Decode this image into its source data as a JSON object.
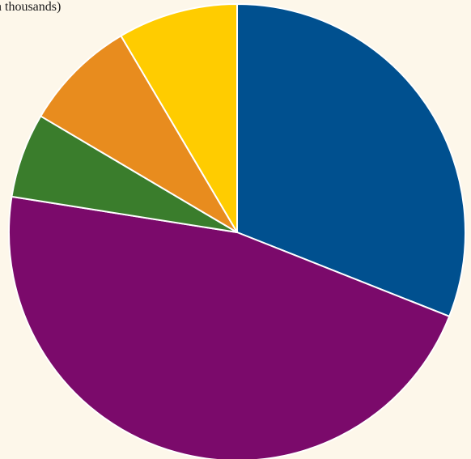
{
  "caption": "n thousands)",
  "chart_data": {
    "type": "pie",
    "start_angle_deg": 0,
    "direction": "clockwise",
    "slices": [
      {
        "value": 31.0,
        "color": "#00508f"
      },
      {
        "value": 46.5,
        "color": "#7b0a6b"
      },
      {
        "value": 6.0,
        "color": "#3a7d2c"
      },
      {
        "value": 8.0,
        "color": "#e88c1e"
      },
      {
        "value": 8.5,
        "color": "#ffcc00"
      }
    ]
  }
}
